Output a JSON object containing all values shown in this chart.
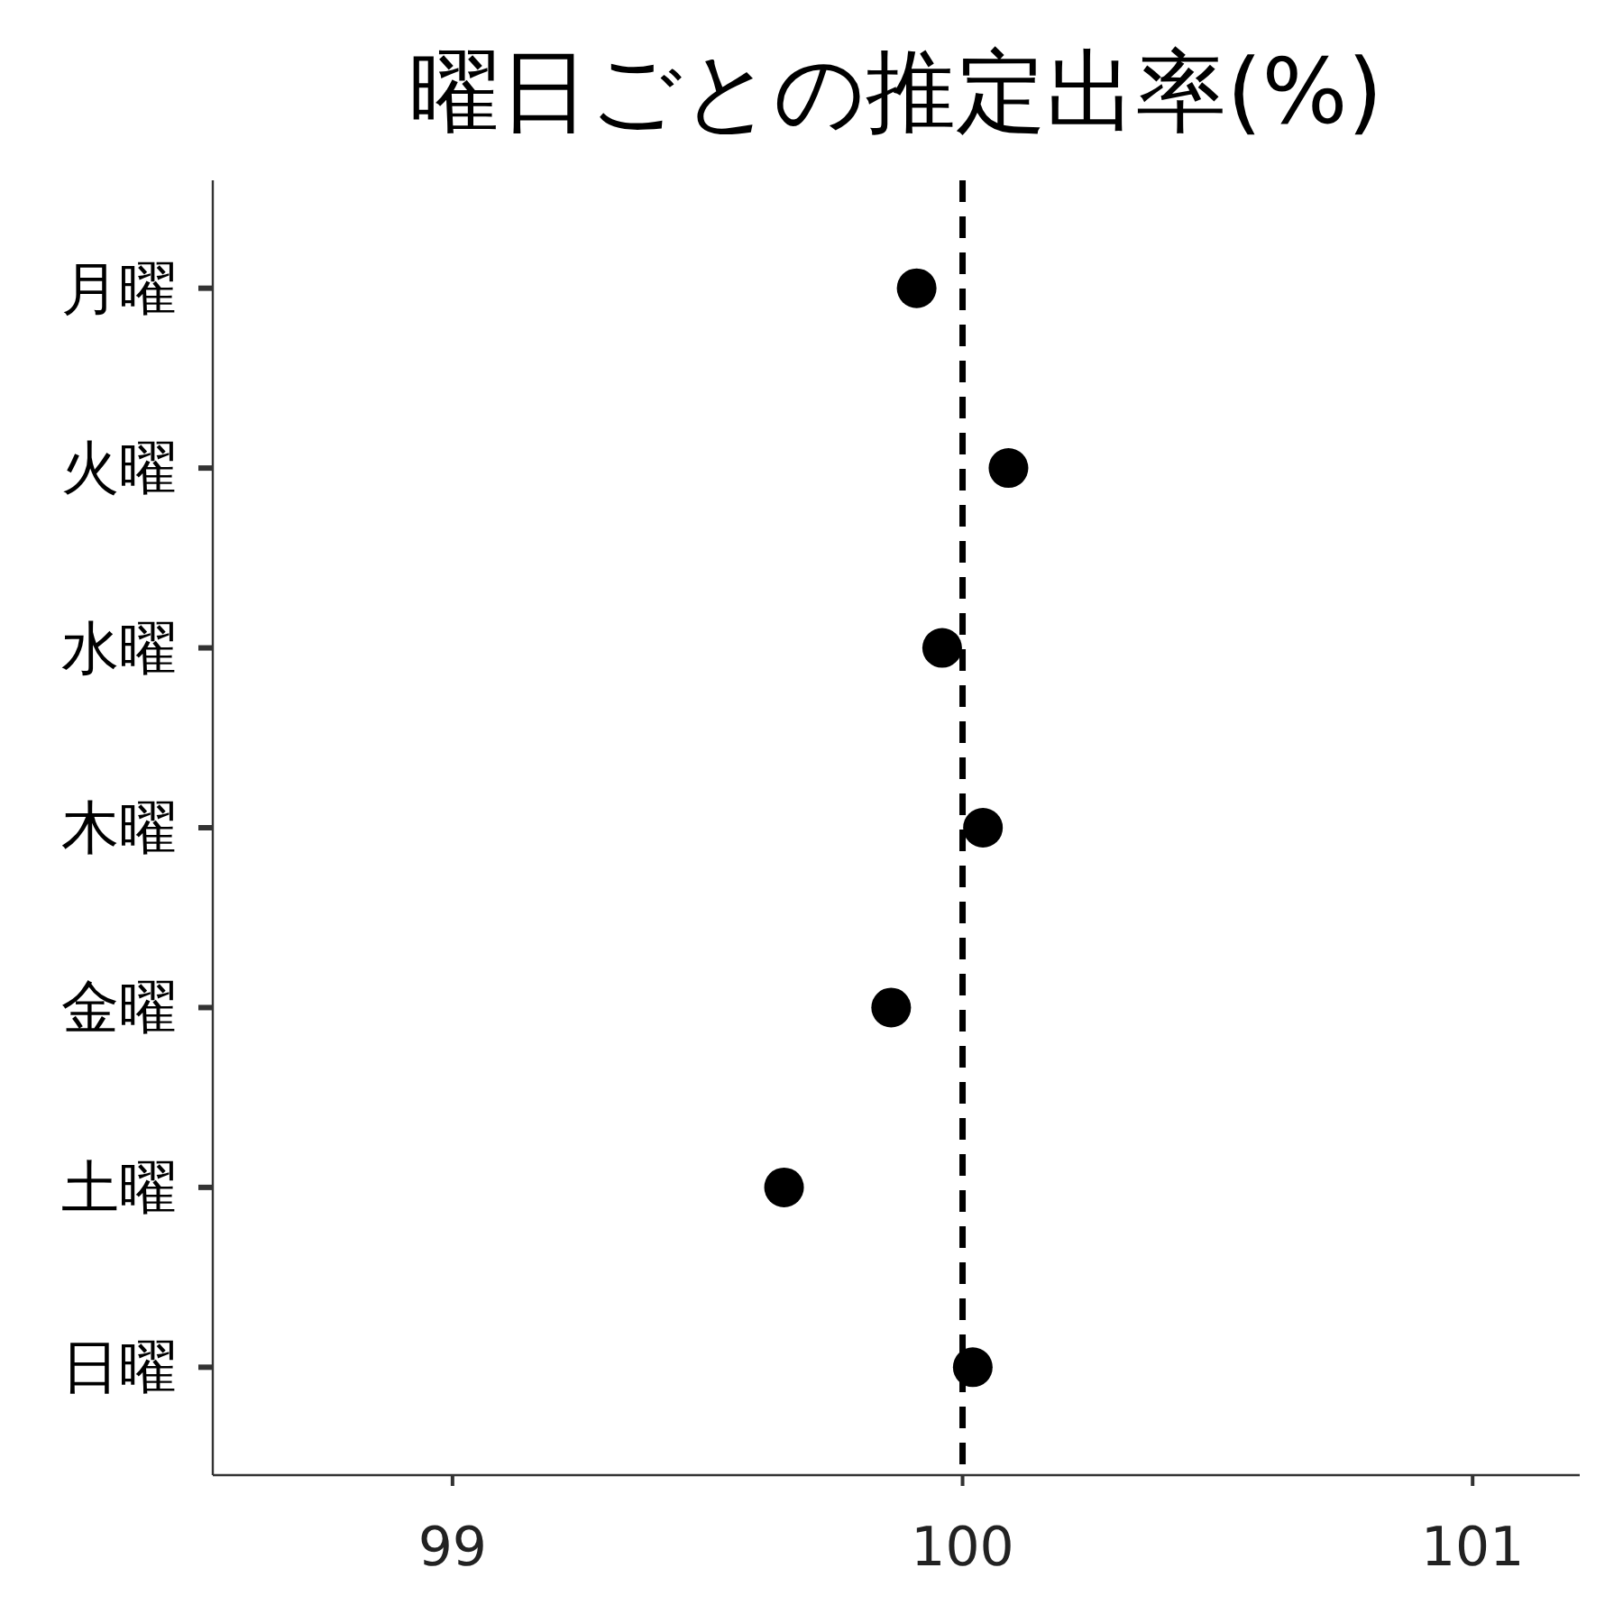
{
  "chart_data": {
    "type": "scatter",
    "title": "曜日ごとの推定出率(%)",
    "orientation": "horizontal",
    "categories": [
      "月曜",
      "火曜",
      "水曜",
      "木曜",
      "金曜",
      "土曜",
      "日曜"
    ],
    "values": [
      99.91,
      100.09,
      99.96,
      100.04,
      99.86,
      99.65,
      100.02
    ],
    "color": "#000000",
    "marker": "circle",
    "xlim": [
      98.53,
      101.21
    ],
    "xticks": [
      99,
      100,
      101
    ],
    "ref_lines": [
      {
        "axis": "x",
        "value": 100,
        "color": "#000000",
        "line_style": "dashed"
      }
    ]
  }
}
